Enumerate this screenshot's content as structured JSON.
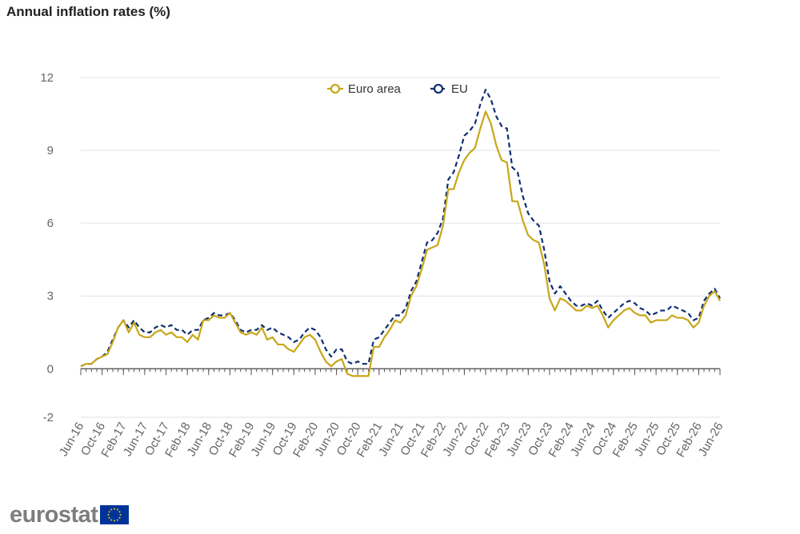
{
  "chart_data": {
    "type": "line",
    "title": "Annual inflation rates (%)",
    "xlabel": "",
    "ylabel": "",
    "ylim": [
      -2,
      12
    ],
    "yticks": [
      -2,
      0,
      3,
      6,
      9,
      12
    ],
    "grid": true,
    "legend_position": "top-center",
    "x_start": "Jun-16",
    "x_tick_labels": [
      "Jun-16",
      "Oct-16",
      "Feb-17",
      "Jun-17",
      "Oct-17",
      "Feb-18",
      "Jun-18",
      "Oct-18",
      "Feb-19",
      "Jun-19",
      "Oct-19",
      "Feb-20",
      "Jun-20",
      "Oct-20",
      "Feb-21",
      "Jun-21",
      "Oct-21",
      "Feb-22",
      "Jun-22",
      "Oct-22",
      "Feb-23",
      "Jun-23",
      "Oct-23",
      "Feb-24",
      "Jun-24",
      "Oct-24",
      "Feb-25",
      "Jun-25",
      "Oct-25",
      "Feb-26",
      "Jun-26"
    ],
    "series": [
      {
        "name": "Euro area",
        "color": "#c8a718",
        "style": "solid",
        "values": [
          0.1,
          0.2,
          0.2,
          0.4,
          0.5,
          0.6,
          1.1,
          1.7,
          2.0,
          1.5,
          1.9,
          1.4,
          1.3,
          1.3,
          1.5,
          1.6,
          1.4,
          1.5,
          1.3,
          1.3,
          1.1,
          1.4,
          1.2,
          2.0,
          2.0,
          2.2,
          2.1,
          2.1,
          2.3,
          1.9,
          1.5,
          1.4,
          1.5,
          1.4,
          1.7,
          1.2,
          1.3,
          1.0,
          1.0,
          0.8,
          0.7,
          1.0,
          1.3,
          1.4,
          1.2,
          0.7,
          0.3,
          0.1,
          0.3,
          0.4,
          -0.2,
          -0.3,
          -0.3,
          -0.3,
          -0.3,
          0.9,
          0.9,
          1.3,
          1.6,
          2.0,
          1.9,
          2.2,
          3.0,
          3.4,
          4.1,
          4.9,
          5.0,
          5.1,
          5.9,
          7.4,
          7.4,
          8.1,
          8.6,
          8.9,
          9.1,
          9.9,
          10.6,
          10.1,
          9.2,
          8.6,
          8.5,
          6.9,
          6.9,
          6.1,
          5.5,
          5.3,
          5.2,
          4.3,
          2.9,
          2.4,
          2.9,
          2.8,
          2.6,
          2.4,
          2.4,
          2.6,
          2.5,
          2.6,
          2.2,
          1.7,
          2.0,
          2.2,
          2.4,
          2.5,
          2.3,
          2.2,
          2.2,
          1.9,
          2.0,
          2.0,
          2.0,
          2.2,
          2.1,
          2.1,
          2.0,
          1.7,
          1.9,
          2.6,
          3.0,
          3.2,
          2.8
        ]
      },
      {
        "name": "EU",
        "color": "#0e2f72",
        "style": "dashed",
        "values": [
          0.1,
          0.2,
          0.2,
          0.4,
          0.5,
          0.7,
          1.2,
          1.7,
          2.0,
          1.7,
          2.0,
          1.7,
          1.5,
          1.5,
          1.7,
          1.8,
          1.7,
          1.8,
          1.6,
          1.6,
          1.4,
          1.6,
          1.6,
          2.0,
          2.1,
          2.3,
          2.2,
          2.2,
          2.3,
          2.0,
          1.6,
          1.5,
          1.6,
          1.6,
          1.8,
          1.6,
          1.7,
          1.5,
          1.4,
          1.3,
          1.1,
          1.2,
          1.5,
          1.7,
          1.6,
          1.3,
          0.8,
          0.5,
          0.8,
          0.8,
          0.3,
          0.2,
          0.3,
          0.2,
          0.2,
          1.2,
          1.3,
          1.6,
          1.9,
          2.2,
          2.2,
          2.5,
          3.2,
          3.6,
          4.4,
          5.2,
          5.3,
          5.6,
          6.2,
          7.8,
          8.1,
          8.8,
          9.6,
          9.8,
          10.1,
          10.9,
          11.5,
          11.1,
          10.4,
          10.0,
          9.9,
          8.3,
          8.1,
          7.1,
          6.4,
          6.1,
          5.9,
          4.9,
          3.6,
          3.1,
          3.4,
          3.1,
          2.8,
          2.6,
          2.6,
          2.7,
          2.6,
          2.8,
          2.4,
          2.1,
          2.3,
          2.5,
          2.7,
          2.8,
          2.7,
          2.5,
          2.4,
          2.2,
          2.3,
          2.4,
          2.4,
          2.6,
          2.5,
          2.4,
          2.3,
          2.0,
          2.1,
          2.8,
          3.1,
          3.3,
          2.9
        ]
      }
    ]
  },
  "branding": {
    "logo_text": "eurostat",
    "flag_blue": "#003399",
    "flag_gold": "#ffcc00"
  }
}
